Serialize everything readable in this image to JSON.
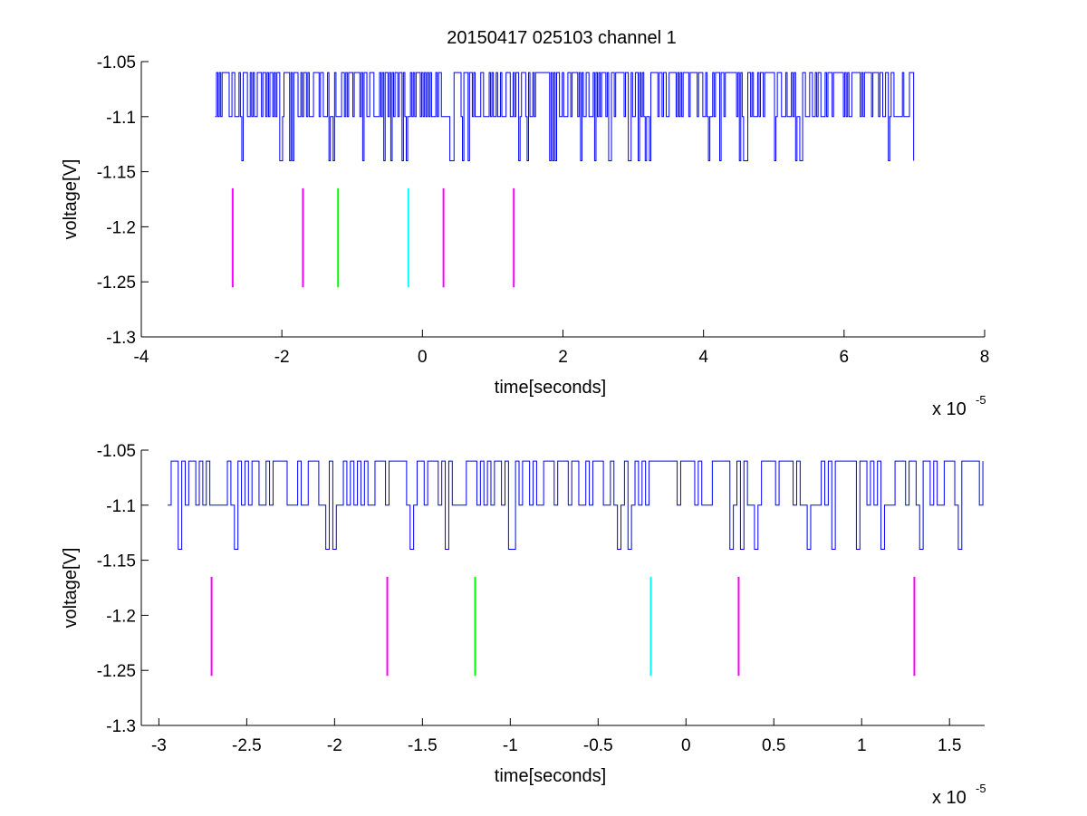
{
  "figure_title": "20150417 025103 channel 1",
  "colors": {
    "signal": "#0000ff",
    "magenta": "#ff00ff",
    "green": "#00ff00",
    "cyan": "#00ffff",
    "axis": "#000000"
  },
  "chart_data": [
    {
      "type": "line",
      "title": "20150417 025103 channel 1",
      "xlabel": "time[seconds]",
      "ylabel": "voltage[V]",
      "x_multiplier": "x 10",
      "x_exponent": "-5",
      "xlim": [
        -4,
        8
      ],
      "ylim": [
        -1.3,
        -1.05
      ],
      "xticks": [
        -4,
        -2,
        0,
        2,
        4,
        6,
        8
      ],
      "xtick_labels": [
        "-4",
        "-2",
        "0",
        "2",
        "4",
        "6",
        "8"
      ],
      "yticks": [
        -1.05,
        -1.1,
        -1.15,
        -1.2,
        -1.25,
        -1.3
      ],
      "ytick_labels": [
        "-1.05",
        "-1.1",
        "-1.15",
        "-1.2",
        "-1.25",
        "-1.3"
      ],
      "grid": false,
      "series": [
        {
          "color": "#0000ff",
          "x_range": [
            -2.95,
            7.0
          ],
          "levels": [
            -1.06,
            -1.1,
            -1.14
          ],
          "dominant_level": -1.1,
          "sample_step": 0.02
        }
      ],
      "markers": [
        {
          "x": -2.7,
          "y_range": [
            -1.255,
            -1.165
          ],
          "color": "#ff00ff"
        },
        {
          "x": -1.7,
          "y_range": [
            -1.255,
            -1.165
          ],
          "color": "#ff00ff"
        },
        {
          "x": -1.2,
          "y_range": [
            -1.255,
            -1.165
          ],
          "color": "#00ff00"
        },
        {
          "x": -0.2,
          "y_range": [
            -1.255,
            -1.165
          ],
          "color": "#00ffff"
        },
        {
          "x": 0.3,
          "y_range": [
            -1.255,
            -1.165
          ],
          "color": "#ff00ff"
        },
        {
          "x": 1.3,
          "y_range": [
            -1.255,
            -1.165
          ],
          "color": "#ff00ff"
        }
      ]
    },
    {
      "type": "line",
      "title": "",
      "xlabel": "time[seconds]",
      "ylabel": "voltage[V]",
      "x_multiplier": "x 10",
      "x_exponent": "-5",
      "xlim": [
        -3.1,
        1.7
      ],
      "ylim": [
        -1.3,
        -1.05
      ],
      "xticks": [
        -3,
        -2.5,
        -2,
        -1.5,
        -1,
        -0.5,
        0,
        0.5,
        1,
        1.5
      ],
      "xtick_labels": [
        "-3",
        "-2.5",
        "-2",
        "-1.5",
        "-1",
        "-0.5",
        "0",
        "0.5",
        "1",
        "1.5"
      ],
      "yticks": [
        -1.05,
        -1.1,
        -1.15,
        -1.2,
        -1.25,
        -1.3
      ],
      "ytick_labels": [
        "-1.05",
        "-1.1",
        "-1.15",
        "-1.2",
        "-1.25",
        "-1.3"
      ],
      "grid": false,
      "series": [
        {
          "color": "#0000ff",
          "x_range": [
            -2.95,
            1.7
          ],
          "levels": [
            -1.06,
            -1.1,
            -1.14
          ],
          "dominant_level": -1.1,
          "sample_step": 0.02
        }
      ],
      "markers": [
        {
          "x": -2.7,
          "y_range": [
            -1.255,
            -1.165
          ],
          "color": "#ff00ff"
        },
        {
          "x": -1.7,
          "y_range": [
            -1.255,
            -1.165
          ],
          "color": "#ff00ff"
        },
        {
          "x": -1.2,
          "y_range": [
            -1.255,
            -1.165
          ],
          "color": "#00ff00"
        },
        {
          "x": -0.2,
          "y_range": [
            -1.255,
            -1.165
          ],
          "color": "#00ffff"
        },
        {
          "x": 0.3,
          "y_range": [
            -1.255,
            -1.165
          ],
          "color": "#ff00ff"
        },
        {
          "x": 1.3,
          "y_range": [
            -1.255,
            -1.165
          ],
          "color": "#ff00ff"
        }
      ]
    }
  ]
}
